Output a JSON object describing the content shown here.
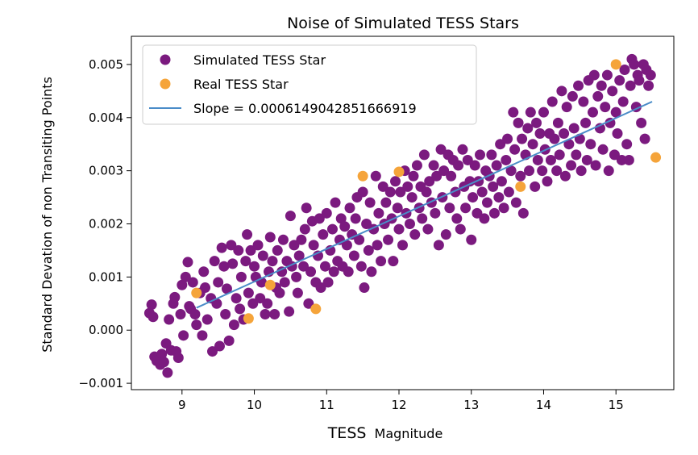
{
  "chart_data": {
    "type": "scatter",
    "title": "Noise of Simulated TESS Stars",
    "xlabel_main": "TESS",
    "xlabel_sub": "Magnitude",
    "ylabel": "Standard Devation of non Transiting Points",
    "xlim": [
      8.3,
      15.8
    ],
    "ylim": [
      -0.00112,
      0.00553
    ],
    "xticks": [
      9,
      10,
      11,
      12,
      13,
      14,
      15
    ],
    "xtick_labels": [
      "9",
      "10",
      "11",
      "12",
      "13",
      "14",
      "15"
    ],
    "yticks": [
      -0.001,
      0.0,
      0.001,
      0.002,
      0.003,
      0.004,
      0.005
    ],
    "ytick_labels": [
      "−0.001",
      "0.000",
      "0.001",
      "0.002",
      "0.003",
      "0.004",
      "0.005"
    ],
    "legend_position": "top-left",
    "colors": {
      "simulated": "#7b1a7f",
      "real": "#f5a43a",
      "fit": "#4a8cc8"
    },
    "series": [
      {
        "name": "Simulated TESS Star",
        "kind": "scatter",
        "points": [
          [
            8.55,
            0.00032
          ],
          [
            8.58,
            0.00048
          ],
          [
            8.6,
            0.00025
          ],
          [
            8.62,
            -0.0005
          ],
          [
            8.65,
            -0.00058
          ],
          [
            8.7,
            -0.00065
          ],
          [
            8.72,
            -0.00045
          ],
          [
            8.75,
            -0.0006
          ],
          [
            8.78,
            -0.00025
          ],
          [
            8.8,
            -0.0008
          ],
          [
            8.82,
            0.0002
          ],
          [
            8.85,
            -0.00038
          ],
          [
            8.88,
            0.0005
          ],
          [
            8.9,
            0.00062
          ],
          [
            8.92,
            -0.0004
          ],
          [
            8.95,
            -0.00052
          ],
          [
            8.98,
            0.0003
          ],
          [
            9.0,
            0.00085
          ],
          [
            9.02,
            -0.0001
          ],
          [
            9.05,
            0.001
          ],
          [
            9.08,
            0.00128
          ],
          [
            9.1,
            0.00045
          ],
          [
            9.12,
            0.0004
          ],
          [
            9.15,
            0.0009
          ],
          [
            9.18,
            0.0003
          ],
          [
            9.2,
            0.0001
          ],
          [
            9.25,
            0.0007
          ],
          [
            9.28,
            -0.0001
          ],
          [
            9.3,
            0.0011
          ],
          [
            9.32,
            0.0008
          ],
          [
            9.35,
            0.0002
          ],
          [
            9.4,
            0.0006
          ],
          [
            9.42,
            -0.0004
          ],
          [
            9.45,
            0.0013
          ],
          [
            9.48,
            0.0005
          ],
          [
            9.5,
            0.0009
          ],
          [
            9.52,
            -0.0003
          ],
          [
            9.55,
            0.00155
          ],
          [
            9.58,
            0.0012
          ],
          [
            9.6,
            0.0003
          ],
          [
            9.62,
            0.00078
          ],
          [
            9.65,
            -0.0002
          ],
          [
            9.68,
            0.0016
          ],
          [
            9.7,
            0.00125
          ],
          [
            9.72,
            0.0001
          ],
          [
            9.75,
            0.0006
          ],
          [
            9.78,
            0.0015
          ],
          [
            9.8,
            0.0004
          ],
          [
            9.82,
            0.001
          ],
          [
            9.85,
            0.0002
          ],
          [
            9.88,
            0.0013
          ],
          [
            9.9,
            0.0018
          ],
          [
            9.92,
            0.0007
          ],
          [
            9.95,
            0.0015
          ],
          [
            9.98,
            0.0005
          ],
          [
            10.0,
            0.0012
          ],
          [
            10.02,
            0.001
          ],
          [
            10.05,
            0.0016
          ],
          [
            10.08,
            0.0006
          ],
          [
            10.1,
            0.0009
          ],
          [
            10.12,
            0.0014
          ],
          [
            10.15,
            0.0003
          ],
          [
            10.18,
            0.0005
          ],
          [
            10.2,
            0.0011
          ],
          [
            10.22,
            0.00175
          ],
          [
            10.25,
            0.0013
          ],
          [
            10.28,
            0.0003
          ],
          [
            10.3,
            0.0008
          ],
          [
            10.32,
            0.0015
          ],
          [
            10.35,
            0.0007
          ],
          [
            10.38,
            0.0011
          ],
          [
            10.4,
            0.0017
          ],
          [
            10.42,
            0.0009
          ],
          [
            10.45,
            0.0013
          ],
          [
            10.48,
            0.00035
          ],
          [
            10.5,
            0.00215
          ],
          [
            10.52,
            0.0012
          ],
          [
            10.55,
            0.0016
          ],
          [
            10.58,
            0.001
          ],
          [
            10.6,
            0.0007
          ],
          [
            10.62,
            0.0014
          ],
          [
            10.65,
            0.0017
          ],
          [
            10.68,
            0.0012
          ],
          [
            10.7,
            0.0019
          ],
          [
            10.72,
            0.0023
          ],
          [
            10.75,
            0.0005
          ],
          [
            10.78,
            0.0011
          ],
          [
            10.8,
            0.00205
          ],
          [
            10.82,
            0.0016
          ],
          [
            10.85,
            0.0009
          ],
          [
            10.88,
            0.0014
          ],
          [
            10.9,
            0.0021
          ],
          [
            10.92,
            0.0008
          ],
          [
            10.95,
            0.0018
          ],
          [
            10.98,
            0.0012
          ],
          [
            11.0,
            0.0022
          ],
          [
            11.02,
            0.0009
          ],
          [
            11.05,
            0.0015
          ],
          [
            11.08,
            0.0019
          ],
          [
            11.1,
            0.0011
          ],
          [
            11.12,
            0.0024
          ],
          [
            11.15,
            0.0013
          ],
          [
            11.18,
            0.0017
          ],
          [
            11.2,
            0.0021
          ],
          [
            11.22,
            0.0012
          ],
          [
            11.25,
            0.00195
          ],
          [
            11.28,
            0.0016
          ],
          [
            11.3,
            0.0011
          ],
          [
            11.32,
            0.0023
          ],
          [
            11.35,
            0.0018
          ],
          [
            11.38,
            0.0014
          ],
          [
            11.4,
            0.0021
          ],
          [
            11.42,
            0.0025
          ],
          [
            11.45,
            0.0017
          ],
          [
            11.48,
            0.0012
          ],
          [
            11.5,
            0.0026
          ],
          [
            11.52,
            0.0008
          ],
          [
            11.55,
            0.002
          ],
          [
            11.58,
            0.0015
          ],
          [
            11.6,
            0.0024
          ],
          [
            11.62,
            0.0011
          ],
          [
            11.65,
            0.0019
          ],
          [
            11.68,
            0.0029
          ],
          [
            11.7,
            0.0016
          ],
          [
            11.72,
            0.0022
          ],
          [
            11.75,
            0.0013
          ],
          [
            11.78,
            0.0027
          ],
          [
            11.8,
            0.002
          ],
          [
            11.82,
            0.0024
          ],
          [
            11.85,
            0.0017
          ],
          [
            11.88,
            0.0026
          ],
          [
            11.9,
            0.0021
          ],
          [
            11.92,
            0.0013
          ],
          [
            11.95,
            0.0028
          ],
          [
            11.98,
            0.0023
          ],
          [
            12.0,
            0.0019
          ],
          [
            12.02,
            0.0026
          ],
          [
            12.05,
            0.0016
          ],
          [
            12.08,
            0.003
          ],
          [
            12.1,
            0.0022
          ],
          [
            12.12,
            0.0027
          ],
          [
            12.15,
            0.002
          ],
          [
            12.18,
            0.0025
          ],
          [
            12.2,
            0.0029
          ],
          [
            12.22,
            0.0018
          ],
          [
            12.25,
            0.0031
          ],
          [
            12.28,
            0.0023
          ],
          [
            12.3,
            0.0027
          ],
          [
            12.32,
            0.0021
          ],
          [
            12.35,
            0.0033
          ],
          [
            12.38,
            0.0026
          ],
          [
            12.4,
            0.0019
          ],
          [
            12.42,
            0.0028
          ],
          [
            12.45,
            0.0024
          ],
          [
            12.48,
            0.0031
          ],
          [
            12.5,
            0.0022
          ],
          [
            12.52,
            0.0029
          ],
          [
            12.55,
            0.0016
          ],
          [
            12.58,
            0.0034
          ],
          [
            12.6,
            0.0025
          ],
          [
            12.62,
            0.003
          ],
          [
            12.65,
            0.0018
          ],
          [
            12.68,
            0.0033
          ],
          [
            12.7,
            0.0023
          ],
          [
            12.72,
            0.0029
          ],
          [
            12.75,
            0.0032
          ],
          [
            12.78,
            0.0026
          ],
          [
            12.8,
            0.0021
          ],
          [
            12.82,
            0.0031
          ],
          [
            12.85,
            0.0019
          ],
          [
            12.88,
            0.0034
          ],
          [
            12.9,
            0.0027
          ],
          [
            12.92,
            0.0023
          ],
          [
            12.95,
            0.0032
          ],
          [
            12.98,
            0.0028
          ],
          [
            13.0,
            0.0017
          ],
          [
            13.02,
            0.0025
          ],
          [
            13.05,
            0.0031
          ],
          [
            13.08,
            0.0022
          ],
          [
            13.1,
            0.0028
          ],
          [
            13.12,
            0.0033
          ],
          [
            13.15,
            0.0026
          ],
          [
            13.18,
            0.0021
          ],
          [
            13.2,
            0.003
          ],
          [
            13.22,
            0.0024
          ],
          [
            13.25,
            0.0029
          ],
          [
            13.28,
            0.0033
          ],
          [
            13.3,
            0.0027
          ],
          [
            13.32,
            0.0022
          ],
          [
            13.35,
            0.0031
          ],
          [
            13.38,
            0.0025
          ],
          [
            13.4,
            0.0035
          ],
          [
            13.42,
            0.0028
          ],
          [
            13.45,
            0.0023
          ],
          [
            13.48,
            0.0032
          ],
          [
            13.5,
            0.0036
          ],
          [
            13.52,
            0.0026
          ],
          [
            13.55,
            0.003
          ],
          [
            13.58,
            0.0041
          ],
          [
            13.6,
            0.0034
          ],
          [
            13.62,
            0.0024
          ],
          [
            13.65,
            0.0039
          ],
          [
            13.68,
            0.0029
          ],
          [
            13.7,
            0.0036
          ],
          [
            13.72,
            0.0022
          ],
          [
            13.75,
            0.0033
          ],
          [
            13.78,
            0.0038
          ],
          [
            13.8,
            0.003
          ],
          [
            13.82,
            0.0041
          ],
          [
            13.85,
            0.0035
          ],
          [
            13.88,
            0.0027
          ],
          [
            13.9,
            0.0039
          ],
          [
            13.92,
            0.0032
          ],
          [
            13.95,
            0.0037
          ],
          [
            13.98,
            0.003
          ],
          [
            14.0,
            0.0041
          ],
          [
            14.02,
            0.0034
          ],
          [
            14.05,
            0.0028
          ],
          [
            14.08,
            0.0037
          ],
          [
            14.1,
            0.0032
          ],
          [
            14.12,
            0.0043
          ],
          [
            14.15,
            0.0036
          ],
          [
            14.18,
            0.003
          ],
          [
            14.2,
            0.0039
          ],
          [
            14.22,
            0.0033
          ],
          [
            14.25,
            0.0045
          ],
          [
            14.28,
            0.0037
          ],
          [
            14.3,
            0.0029
          ],
          [
            14.32,
            0.0042
          ],
          [
            14.35,
            0.0035
          ],
          [
            14.38,
            0.0031
          ],
          [
            14.4,
            0.0044
          ],
          [
            14.42,
            0.0038
          ],
          [
            14.45,
            0.0033
          ],
          [
            14.48,
            0.0046
          ],
          [
            14.5,
            0.0036
          ],
          [
            14.52,
            0.003
          ],
          [
            14.55,
            0.0043
          ],
          [
            14.58,
            0.0039
          ],
          [
            14.6,
            0.0032
          ],
          [
            14.62,
            0.0047
          ],
          [
            14.65,
            0.0035
          ],
          [
            14.68,
            0.0041
          ],
          [
            14.7,
            0.0048
          ],
          [
            14.72,
            0.0031
          ],
          [
            14.75,
            0.0044
          ],
          [
            14.78,
            0.0038
          ],
          [
            14.8,
            0.0046
          ],
          [
            14.82,
            0.0034
          ],
          [
            14.85,
            0.0042
          ],
          [
            14.88,
            0.0048
          ],
          [
            14.9,
            0.003
          ],
          [
            14.92,
            0.0039
          ],
          [
            14.95,
            0.0045
          ],
          [
            14.98,
            0.0033
          ],
          [
            15.0,
            0.0041
          ],
          [
            15.02,
            0.0037
          ],
          [
            15.05,
            0.0047
          ],
          [
            15.08,
            0.0032
          ],
          [
            15.1,
            0.0043
          ],
          [
            15.12,
            0.0049
          ],
          [
            15.15,
            0.0035
          ],
          [
            15.18,
            0.0032
          ],
          [
            15.2,
            0.0046
          ],
          [
            15.22,
            0.0051
          ],
          [
            15.25,
            0.005
          ],
          [
            15.28,
            0.0042
          ],
          [
            15.3,
            0.0048
          ],
          [
            15.32,
            0.0047
          ],
          [
            15.35,
            0.0039
          ],
          [
            15.38,
            0.005
          ],
          [
            15.4,
            0.0036
          ],
          [
            15.42,
            0.0049
          ],
          [
            15.45,
            0.0046
          ],
          [
            15.48,
            0.0048
          ]
        ]
      },
      {
        "name": "Real TESS Star",
        "kind": "scatter",
        "points": [
          [
            9.2,
            0.0007
          ],
          [
            9.92,
            0.00022
          ],
          [
            10.22,
            0.00085
          ],
          [
            10.85,
            0.0004
          ],
          [
            11.5,
            0.0029
          ],
          [
            12.0,
            0.00298
          ],
          [
            13.68,
            0.0027
          ],
          [
            15.0,
            0.005
          ],
          [
            15.55,
            0.00325
          ]
        ]
      },
      {
        "name": "Slope = 0.0006149042851666919",
        "kind": "line",
        "points": [
          [
            9.2,
            0.00042
          ],
          [
            15.5,
            0.0043
          ]
        ]
      }
    ]
  }
}
